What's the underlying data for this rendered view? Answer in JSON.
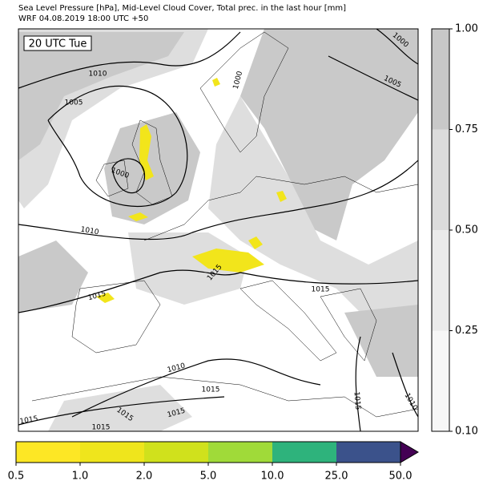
{
  "header": {
    "title": "Sea Level Pressure [hPa], Mid-Level Cloud Cover, Total prec. in the last hour [mm]",
    "subtitle": "WRF 04.08.2019 18:00 UTC +50"
  },
  "map": {
    "time_label": "20 UTC Tue",
    "isobar_labels": [
      "1000",
      "1005",
      "1010",
      "1005",
      "1000",
      "1000",
      "1010",
      "1015",
      "1015",
      "1015",
      "1010",
      "1015",
      "1015",
      "1010",
      "1015",
      "1015",
      "1015",
      "1015"
    ]
  },
  "cloud_colorbar": {
    "ticks": [
      "0.10",
      "0.25",
      "0.50",
      "0.75",
      "1.00"
    ],
    "colors": [
      "#f7f7f7",
      "#ebebeb",
      "#dcdcdc",
      "#c8c8c8"
    ]
  },
  "precip_colorbar": {
    "ticks": [
      "0.5",
      "1.0",
      "2.0",
      "5.0",
      "10.0",
      "25.0",
      "50.0"
    ],
    "colors": [
      "#fde725",
      "#efe51c",
      "#d0e11c",
      "#a0da39",
      "#2eb37c",
      "#3b528b"
    ],
    "extend_color": "#440154"
  }
}
